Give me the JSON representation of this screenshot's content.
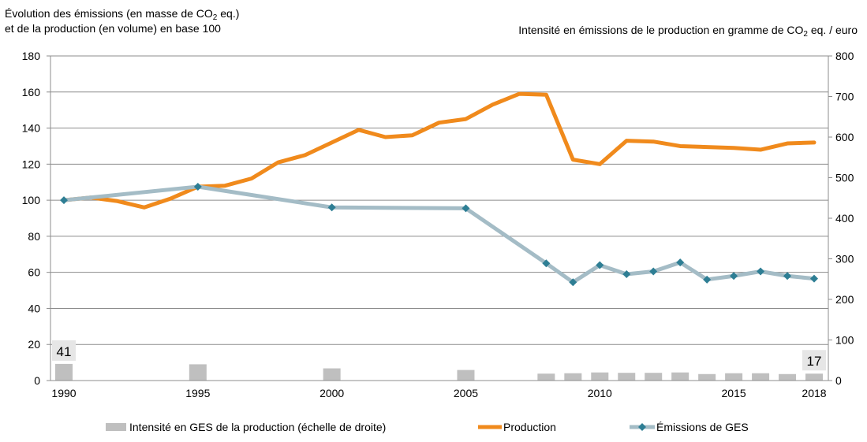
{
  "titles": {
    "left_line1_a": "Évolution des émissions (en masse de CO",
    "left_line1_sub": "2",
    "left_line1_b": " eq.)",
    "left_line2": "et de la production (en volume) en base 100",
    "right_a": "Intensité en émissions de le production en gramme de CO",
    "right_sub": "2",
    "right_b": " eq. / euro"
  },
  "colors": {
    "production": "#F08A1C",
    "emissions": "#A4BCC6",
    "emissions_marker": "#2E7E94",
    "intensity": "#BFBFBF",
    "grid": "#8C8C8C",
    "axis": "#8C8C8C"
  },
  "chart_data": {
    "type": "line",
    "title": "",
    "x_ticks": [
      1990,
      1995,
      2000,
      2005,
      2010,
      2015,
      2018
    ],
    "xlim": [
      1990,
      2018
    ],
    "ylim_left": [
      0,
      180
    ],
    "yticks_left": [
      0,
      20,
      40,
      60,
      80,
      100,
      120,
      140,
      160,
      180
    ],
    "ylim_right": [
      0,
      800
    ],
    "yticks_right": [
      0,
      100,
      200,
      300,
      400,
      500,
      600,
      700,
      800
    ],
    "grid": true,
    "legend_position": "bottom",
    "series": [
      {
        "name": "Production",
        "axis": "left",
        "kind": "line",
        "x": [
          1990,
          1991,
          1992,
          1993,
          1994,
          1995,
          1996,
          1997,
          1998,
          1999,
          2000,
          2001,
          2002,
          2003,
          2004,
          2005,
          2006,
          2007,
          2008,
          2009,
          2010,
          2011,
          2012,
          2013,
          2014,
          2015,
          2016,
          2017,
          2018
        ],
        "values": [
          100,
          101.5,
          99.5,
          96,
          101,
          107.5,
          108,
          112,
          121,
          125,
          132,
          139,
          135,
          136,
          143,
          145,
          153,
          159,
          158.5,
          122.5,
          120,
          133,
          132.5,
          130,
          129.5,
          129,
          128,
          131.5,
          132
        ]
      },
      {
        "name": "Émissions de GES",
        "axis": "left",
        "kind": "line-markers",
        "x": [
          1990,
          1995,
          2000,
          2005,
          2008,
          2009,
          2010,
          2011,
          2012,
          2013,
          2014,
          2015,
          2016,
          2017,
          2018
        ],
        "values": [
          100,
          107.5,
          96,
          95.5,
          65,
          54.5,
          64,
          59,
          60.5,
          65.5,
          56,
          58,
          60.5,
          58,
          56.5
        ]
      },
      {
        "name": "Intensité en GES de la production (échelle de droite)",
        "axis": "right",
        "kind": "bar",
        "x": [
          1990,
          1995,
          2000,
          2005,
          2008,
          2009,
          2010,
          2011,
          2012,
          2013,
          2014,
          2015,
          2016,
          2017,
          2018
        ],
        "values": [
          41,
          40,
          30,
          26,
          17,
          18,
          20,
          19,
          19,
          20,
          16,
          18,
          18,
          16,
          17
        ]
      }
    ],
    "annotations": [
      {
        "year": 1990,
        "label": "41"
      },
      {
        "year": 2018,
        "label": "17"
      }
    ]
  },
  "legend": {
    "intensity": "Intensité en GES de la production (échelle de droite)",
    "production": "Production",
    "emissions": "Émissions de GES"
  }
}
